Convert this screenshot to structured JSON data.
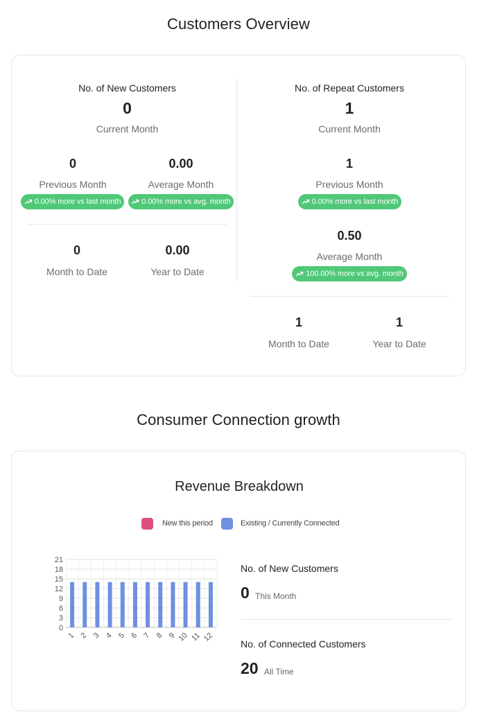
{
  "overview": {
    "title": "Customers Overview",
    "new_customers": {
      "title": "No. of New Customers",
      "current_value": "0",
      "current_label": "Current Month",
      "previous_value": "0",
      "previous_label": "Previous Month",
      "previous_badge": "0.00% more vs last month",
      "average_value": "0.00",
      "average_label": "Average Month",
      "average_badge": "0.00% more vs avg. month",
      "mtd_value": "0",
      "mtd_label": "Month to Date",
      "ytd_value": "0.00",
      "ytd_label": "Year to Date"
    },
    "repeat_customers": {
      "title": "No. of Repeat Customers",
      "current_value": "1",
      "current_label": "Current Month",
      "previous_value": "1",
      "previous_label": "Previous Month",
      "previous_badge": "0.00% more vs last month",
      "average_value": "0.50",
      "average_label": "Average Month",
      "average_badge": "100.00% more vs avg. month",
      "mtd_value": "1",
      "mtd_label": "Month to Date",
      "ytd_value": "1",
      "ytd_label": "Year to Date"
    },
    "badge_icon": "trending-up-icon",
    "badge_color": "#4fc878"
  },
  "growth": {
    "title": "Consumer Connection growth",
    "chart_title": "Revenue Breakdown",
    "legend": [
      {
        "label": "New this period",
        "color": "#dc4f7c"
      },
      {
        "label": "Existing / Currently Connected",
        "color": "#6f8fe0"
      }
    ],
    "stats": {
      "new_label": "No. of New Customers",
      "new_value": "0",
      "new_period": "This Month",
      "connected_label": "No. of Connected Customers",
      "connected_value": "20",
      "connected_period": "All Time"
    }
  },
  "chart_data": {
    "type": "bar",
    "title": "Revenue Breakdown",
    "categories": [
      "1",
      "2",
      "3",
      "4",
      "5",
      "6",
      "7",
      "8",
      "9",
      "10",
      "11",
      "12"
    ],
    "series": [
      {
        "name": "New this period",
        "color": "#dc4f7c",
        "values": [
          0,
          0,
          0,
          0,
          0,
          0,
          0,
          0,
          0,
          0,
          0,
          0
        ]
      },
      {
        "name": "Existing / Currently Connected",
        "color": "#6f8fe0",
        "values": [
          14,
          14,
          14,
          14,
          14,
          14,
          14,
          14,
          14,
          14,
          14,
          14
        ]
      }
    ],
    "yticks": [
      0,
      3,
      6,
      9,
      12,
      15,
      18,
      21
    ],
    "ylim": [
      0,
      21
    ],
    "grid": true,
    "legend_position": "top"
  }
}
